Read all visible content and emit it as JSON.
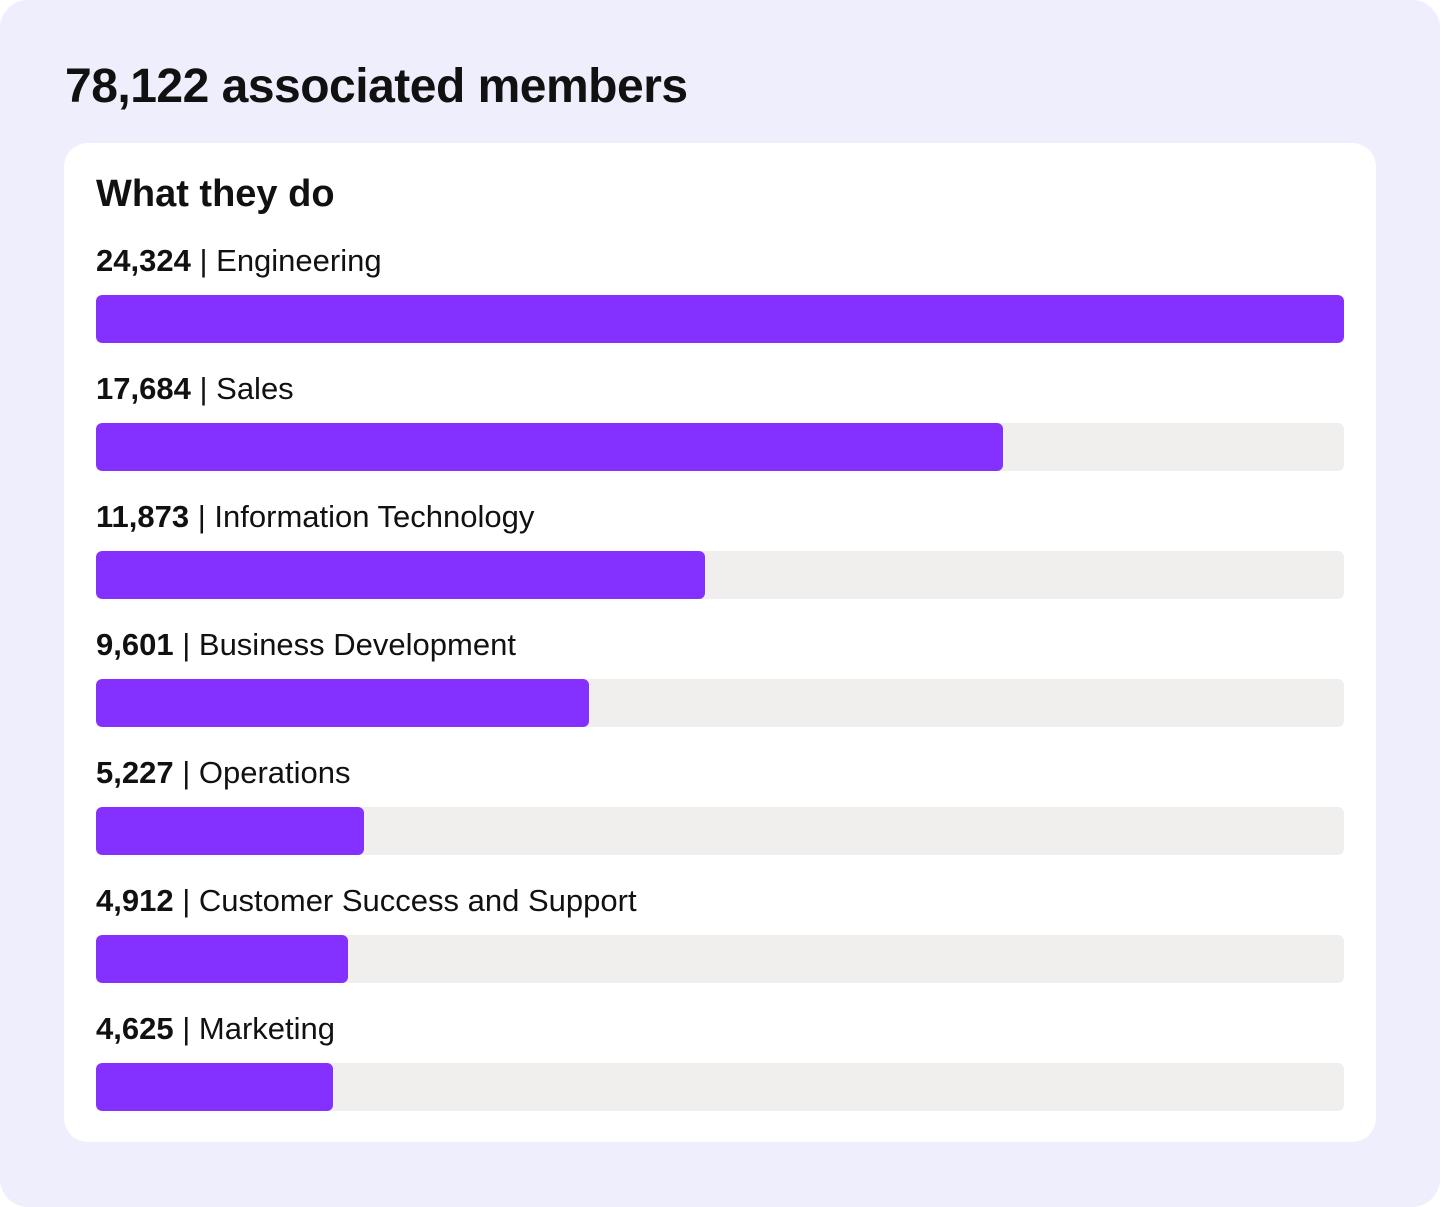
{
  "headline": "78,122 associated members",
  "colors": {
    "bar": "#8430ff",
    "track": "#f0efed",
    "background": "#efeefd"
  },
  "chart_data": {
    "type": "bar",
    "orientation": "horizontal",
    "title": "What they do",
    "categories": [
      "Engineering",
      "Sales",
      "Information Technology",
      "Business Development",
      "Operations",
      "Customer Success and Support",
      "Marketing"
    ],
    "values": [
      24324,
      17684,
      11873,
      9601,
      5227,
      4912,
      4625
    ],
    "value_labels": [
      "24,324",
      "17,684",
      "11,873",
      "9,601",
      "5,227",
      "4,912",
      "4,625"
    ],
    "separator": "|",
    "xlim": [
      0,
      24324
    ],
    "grid": false
  }
}
